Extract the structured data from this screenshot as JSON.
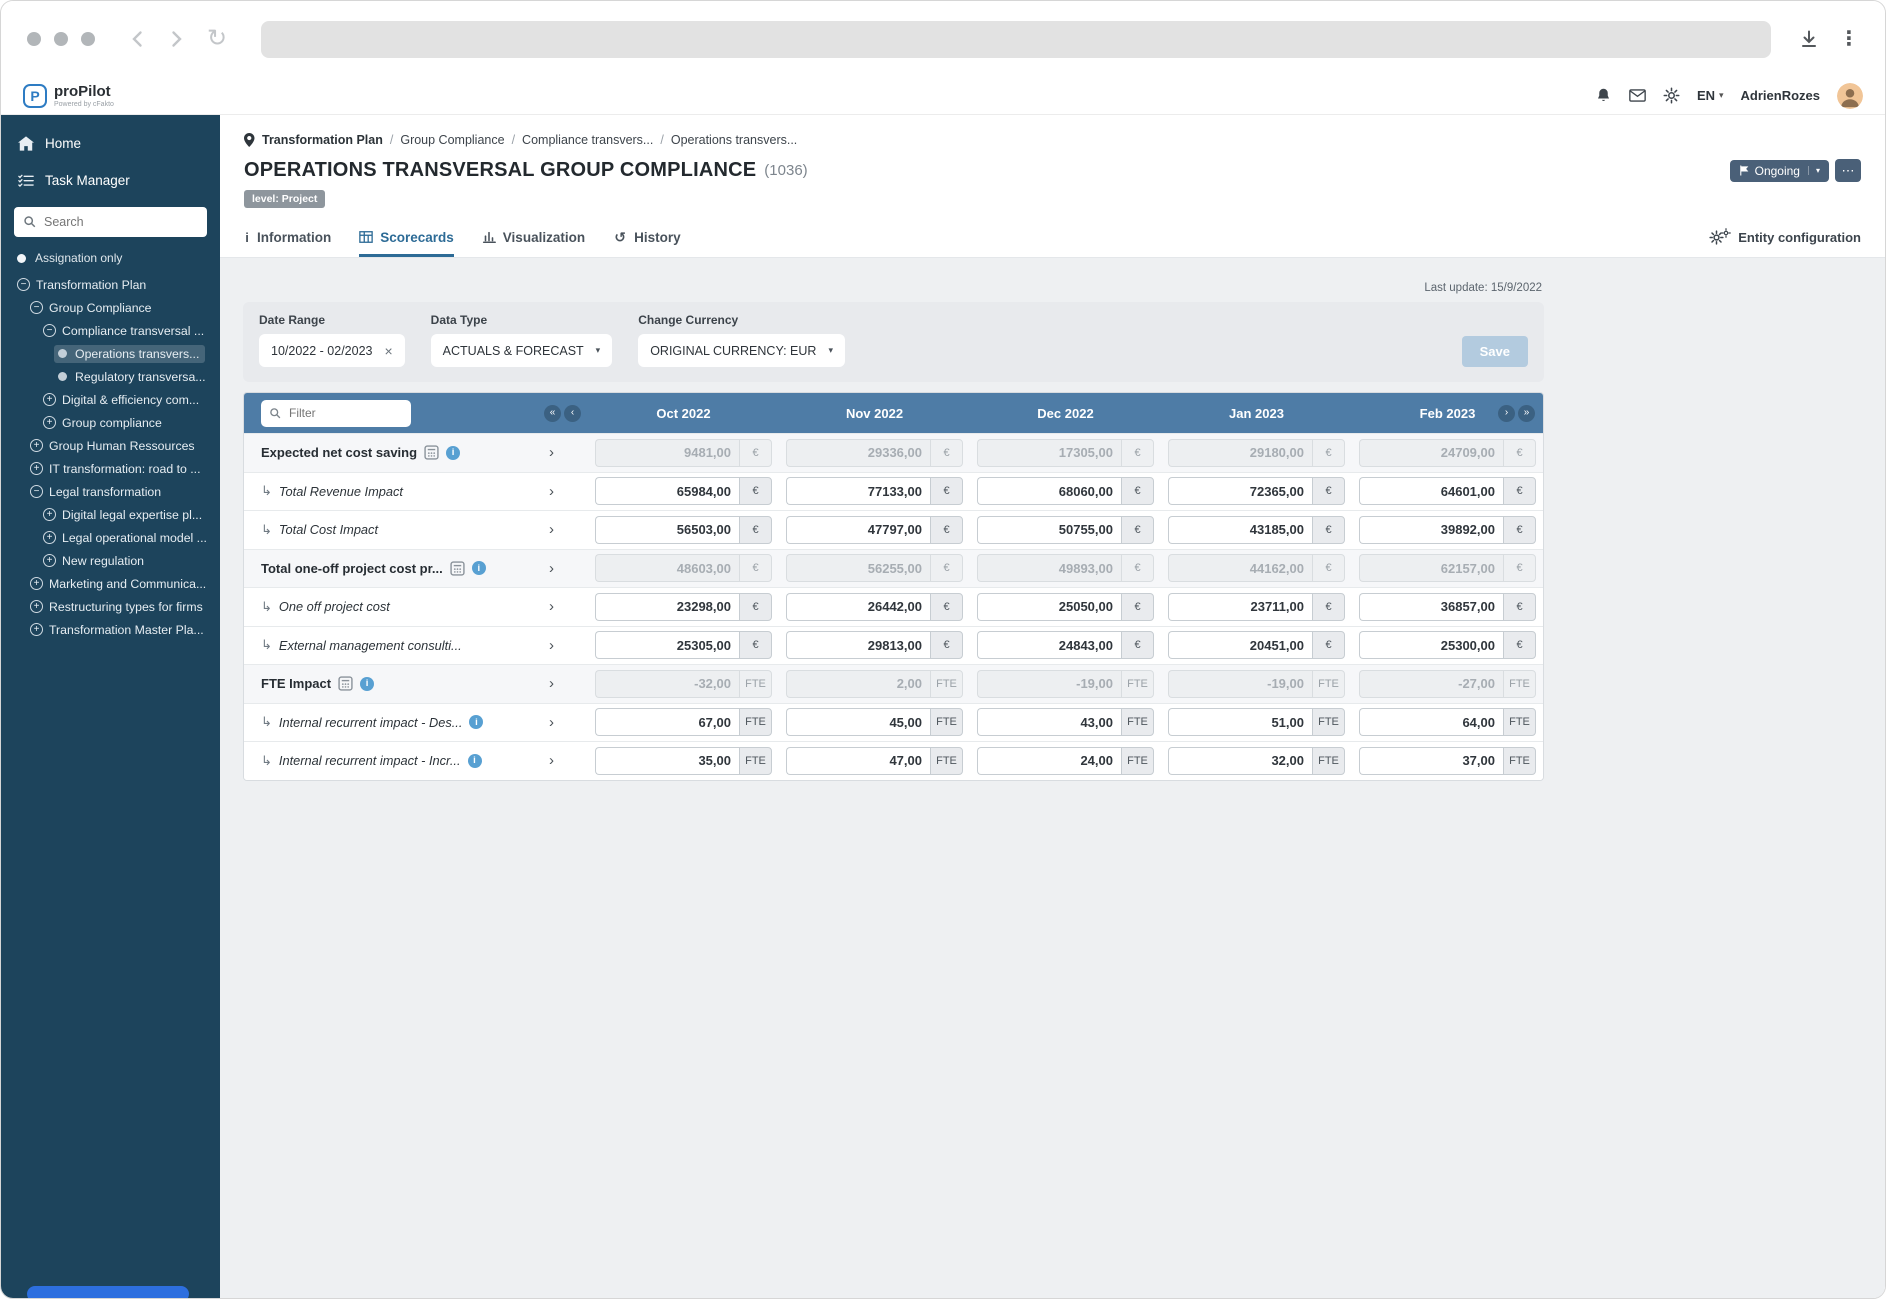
{
  "colors": {
    "sidebar_bg": "#1d445c",
    "table_header_bg": "#4e7ca6",
    "accent": "#2d6b96",
    "status": "#4a6078",
    "save": "#b3cbdf",
    "info": "#58a0d2",
    "chat": "#2d6fdf"
  },
  "header": {
    "brand": "proPilot",
    "brand_sub": "Powered by cFakto",
    "language": "EN",
    "user_name": "AdrienRozes"
  },
  "sidebar": {
    "items": [
      {
        "label": "Home"
      },
      {
        "label": "Task Manager"
      }
    ],
    "search_placeholder": "Search",
    "assignation_label": "Assignation only",
    "tree": [
      {
        "label": "Transformation Plan",
        "depth": 0,
        "icon": "minus"
      },
      {
        "label": "Group Compliance",
        "depth": 1,
        "icon": "minus"
      },
      {
        "label": "Compliance transversal ...",
        "depth": 2,
        "icon": "minus"
      },
      {
        "label": "Operations transvers...",
        "depth": 3,
        "icon": "dot",
        "selected": true
      },
      {
        "label": "Regulatory transversa...",
        "depth": 3,
        "icon": "dot"
      },
      {
        "label": "Digital & efficiency com...",
        "depth": 2,
        "icon": "plus"
      },
      {
        "label": "Group compliance",
        "depth": 2,
        "icon": "plus"
      },
      {
        "label": "Group Human Ressources",
        "depth": 1,
        "icon": "plus"
      },
      {
        "label": "IT transformation: road to ...",
        "depth": 1,
        "icon": "plus"
      },
      {
        "label": "Legal transformation",
        "depth": 1,
        "icon": "minus"
      },
      {
        "label": "Digital legal expertise pl...",
        "depth": 2,
        "icon": "plus"
      },
      {
        "label": "Legal operational model ...",
        "depth": 2,
        "icon": "plus"
      },
      {
        "label": "New regulation",
        "depth": 2,
        "icon": "plus"
      },
      {
        "label": "Marketing and Communica...",
        "depth": 1,
        "icon": "plus"
      },
      {
        "label": "Restructuring types for firms",
        "depth": 1,
        "icon": "plus"
      },
      {
        "label": "Transformation Master Pla...",
        "depth": 1,
        "icon": "plus"
      }
    ]
  },
  "breadcrumb": {
    "items": [
      "Transformation Plan",
      "Group Compliance",
      "Compliance transvers...",
      "Operations transvers..."
    ]
  },
  "page": {
    "title": "OPERATIONS TRANSVERSAL GROUP COMPLIANCE",
    "entity_id": "(1036)",
    "level_badge": "level: Project",
    "status_label": "Ongoing",
    "last_update": "Last update: 15/9/2022"
  },
  "tabs": {
    "items": [
      {
        "label": "Information",
        "active": false
      },
      {
        "label": "Scorecards",
        "active": true
      },
      {
        "label": "Visualization",
        "active": false
      },
      {
        "label": "History",
        "active": false
      }
    ],
    "entity_config_label": "Entity configuration"
  },
  "filters": {
    "date_range_label": "Date Range",
    "date_range_value": "10/2022 - 02/2023",
    "data_type_label": "Data Type",
    "data_type_value": "ACTUALS & FORECAST",
    "currency_label": "Change Currency",
    "currency_value": "ORIGINAL CURRENCY: EUR",
    "save_label": "Save"
  },
  "table": {
    "filter_placeholder": "Filter",
    "columns": [
      "Oct 2022",
      "Nov 2022",
      "Dec 2022",
      "Jan 2023",
      "Feb 2023"
    ],
    "rows": [
      {
        "label": "Expected net cost saving",
        "type": "summary",
        "icons": [
          "calc",
          "info"
        ],
        "unit": "€",
        "readonly": true,
        "values": [
          "9481,00",
          "29336,00",
          "17305,00",
          "29180,00",
          "24709,00"
        ]
      },
      {
        "label": "Total Revenue Impact",
        "type": "child",
        "icons": [],
        "unit": "€",
        "readonly": false,
        "values": [
          "65984,00",
          "77133,00",
          "68060,00",
          "72365,00",
          "64601,00"
        ]
      },
      {
        "label": "Total Cost Impact",
        "type": "child",
        "icons": [],
        "unit": "€",
        "readonly": false,
        "values": [
          "56503,00",
          "47797,00",
          "50755,00",
          "43185,00",
          "39892,00"
        ]
      },
      {
        "label": "Total one-off project cost pr...",
        "type": "summary",
        "icons": [
          "calc",
          "info"
        ],
        "unit": "€",
        "readonly": true,
        "values": [
          "48603,00",
          "56255,00",
          "49893,00",
          "44162,00",
          "62157,00"
        ]
      },
      {
        "label": "One off project cost",
        "type": "child",
        "icons": [],
        "unit": "€",
        "readonly": false,
        "values": [
          "23298,00",
          "26442,00",
          "25050,00",
          "23711,00",
          "36857,00"
        ]
      },
      {
        "label": "External management consulti...",
        "type": "child",
        "icons": [],
        "unit": "€",
        "readonly": false,
        "values": [
          "25305,00",
          "29813,00",
          "24843,00",
          "20451,00",
          "25300,00"
        ]
      },
      {
        "label": "FTE Impact",
        "type": "summary",
        "icons": [
          "calc",
          "info"
        ],
        "unit": "FTE",
        "readonly": true,
        "values": [
          "-32,00",
          "2,00",
          "-19,00",
          "-19,00",
          "-27,00"
        ]
      },
      {
        "label": "Internal recurrent impact - Des...",
        "type": "child",
        "icons": [
          "info"
        ],
        "unit": "FTE",
        "readonly": false,
        "values": [
          "67,00",
          "45,00",
          "43,00",
          "51,00",
          "64,00"
        ]
      },
      {
        "label": "Internal recurrent impact - Incr...",
        "type": "child",
        "icons": [
          "info"
        ],
        "unit": "FTE",
        "readonly": false,
        "values": [
          "35,00",
          "47,00",
          "24,00",
          "32,00",
          "37,00"
        ]
      }
    ]
  }
}
